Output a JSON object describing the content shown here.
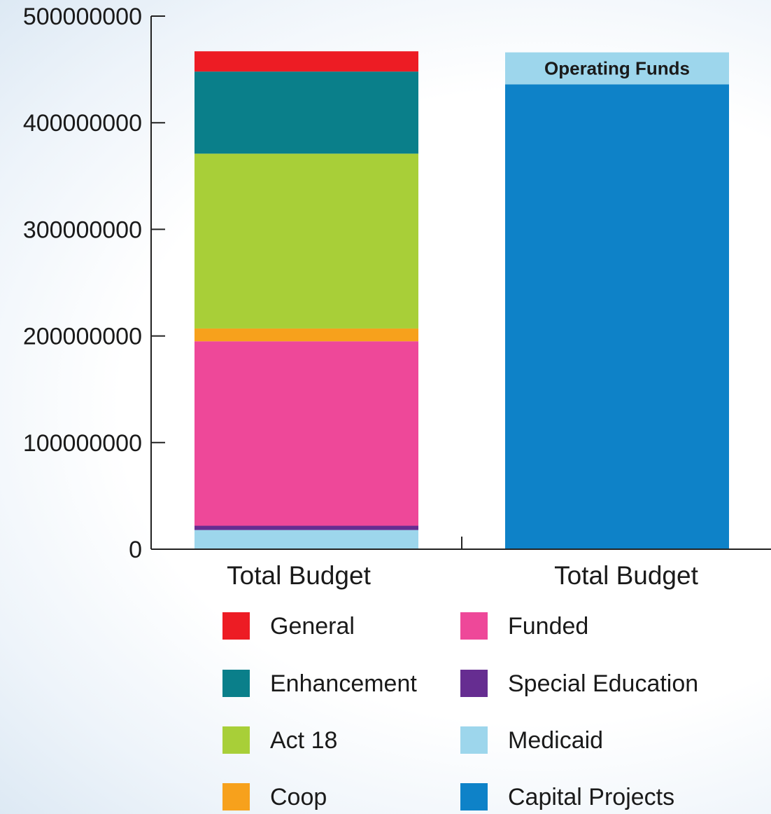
{
  "chart_data": {
    "type": "bar",
    "stacked": true,
    "categories": [
      "Total Budget",
      "Total Budget"
    ],
    "ylim": [
      0,
      500000000
    ],
    "yticks": [
      0,
      100000000,
      200000000,
      300000000,
      400000000,
      500000000
    ],
    "ytick_labels": [
      "0",
      "100000000",
      "200000000",
      "300000000",
      "400000000",
      "500000000"
    ],
    "grid": false,
    "legend_position": "bottom",
    "series": [
      {
        "name": "Medicaid",
        "color": "#9dd6ec",
        "values": [
          18000000,
          0
        ]
      },
      {
        "name": "Special Education",
        "color": "#662d91",
        "values": [
          4000000,
          0
        ]
      },
      {
        "name": "Funded",
        "color": "#ee4899",
        "values": [
          173000000,
          0
        ]
      },
      {
        "name": "Coop",
        "color": "#f7a11c",
        "values": [
          12000000,
          0
        ]
      },
      {
        "name": "Act 18",
        "color": "#a8cf38",
        "values": [
          164000000,
          0
        ]
      },
      {
        "name": "Enhancement",
        "color": "#0a7f8a",
        "values": [
          77000000,
          0
        ]
      },
      {
        "name": "General",
        "color": "#ed1c24",
        "values": [
          19000000,
          0
        ]
      },
      {
        "name": "Capital Projects",
        "color": "#0e82c8",
        "values": [
          0,
          436000000
        ]
      },
      {
        "name": "Operating Funds",
        "color": "#9dd6ec",
        "values": [
          0,
          30000000
        ],
        "bar_label": "Operating Funds"
      }
    ],
    "legend": [
      {
        "name": "General",
        "color": "#ed1c24"
      },
      {
        "name": "Funded",
        "color": "#ee4899"
      },
      {
        "name": "Enhancement",
        "color": "#0a7f8a"
      },
      {
        "name": "Special Education",
        "color": "#662d91"
      },
      {
        "name": "Act 18",
        "color": "#a8cf38"
      },
      {
        "name": "Medicaid",
        "color": "#9dd6ec"
      },
      {
        "name": "Coop",
        "color": "#f7a11c"
      },
      {
        "name": "Capital Projects",
        "color": "#0e82c8"
      }
    ]
  }
}
